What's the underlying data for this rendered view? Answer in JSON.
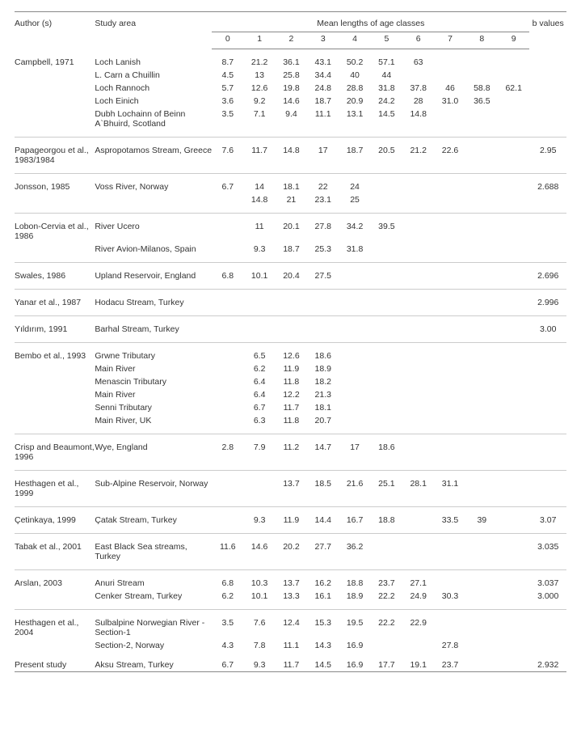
{
  "columns": {
    "author": "Author (s)",
    "area": "Study area",
    "span": "Mean lengths of age classes",
    "ages": [
      "0",
      "1",
      "2",
      "3",
      "4",
      "5",
      "6",
      "7",
      "8",
      "9"
    ],
    "b": "b values"
  },
  "groups": [
    {
      "author": "Campbell, 1971",
      "rows": [
        {
          "area": "Loch Lanish",
          "v": [
            "8.7",
            "21.2",
            "36.1",
            "43.1",
            "50.2",
            "57.1",
            "63",
            "",
            "",
            ""
          ],
          "b": ""
        },
        {
          "area": "L. Carn a Chuillin",
          "v": [
            "4.5",
            "13",
            "25.8",
            "34.4",
            "40",
            "44",
            "",
            "",
            "",
            ""
          ],
          "b": ""
        },
        {
          "area": "Loch Rannoch",
          "v": [
            "5.7",
            "12.6",
            "19.8",
            "24.8",
            "28.8",
            "31.8",
            "37.8",
            "46",
            "58.8",
            "62.1"
          ],
          "b": ""
        },
        {
          "area": "Loch Einich",
          "v": [
            "3.6",
            "9.2",
            "14.6",
            "18.7",
            "20.9",
            "24.2",
            "28",
            "31.0",
            "36.5",
            ""
          ],
          "b": ""
        },
        {
          "area": "Dubh Lochainn of Beinn A`Bhuird, Scotland",
          "v": [
            "3.5",
            "7.1",
            "9.4",
            "11.1",
            "13.1",
            "14.5",
            "14.8",
            "",
            "",
            ""
          ],
          "b": ""
        }
      ]
    },
    {
      "author": "Papageorgou et al., 1983/1984",
      "rows": [
        {
          "area": "Aspropotamos Stream, Greece",
          "v": [
            "7.6",
            "11.7",
            "14.8",
            "17",
            "18.7",
            "20.5",
            "21.2",
            "22.6",
            "",
            ""
          ],
          "b": "2.95"
        }
      ]
    },
    {
      "author": "Jonsson, 1985",
      "rows": [
        {
          "area": "Voss River, Norway",
          "v": [
            "6.7",
            "14",
            "18.1",
            "22",
            "24",
            "",
            "",
            "",
            "",
            ""
          ],
          "b": "2.688"
        },
        {
          "area": "",
          "v": [
            "",
            "14.8",
            "21",
            "23.1",
            "25",
            "",
            "",
            "",
            "",
            ""
          ],
          "b": ""
        }
      ]
    },
    {
      "author": "Lobon-Cervia et al., 1986",
      "rows": [
        {
          "area": "River Ucero",
          "v": [
            "",
            "11",
            "20.1",
            "27.8",
            "34.2",
            "39.5",
            "",
            "",
            "",
            ""
          ],
          "b": ""
        },
        {
          "area": "River Avion-Milanos, Spain",
          "v": [
            "",
            "9.3",
            "18.7",
            "25.3",
            "31.8",
            "",
            "",
            "",
            "",
            ""
          ],
          "b": ""
        }
      ]
    },
    {
      "author": "Swales, 1986",
      "rows": [
        {
          "area": "Upland Reservoir, England",
          "v": [
            "6.8",
            "10.1",
            "20.4",
            "27.5",
            "",
            "",
            "",
            "",
            "",
            ""
          ],
          "b": "2.696"
        }
      ]
    },
    {
      "author": "Yanar et al., 1987",
      "rows": [
        {
          "area": "Hodacu Stream, Turkey",
          "v": [
            "",
            "",
            "",
            "",
            "",
            "",
            "",
            "",
            "",
            ""
          ],
          "b": "2.996"
        }
      ]
    },
    {
      "author": "Yıldırım, 1991",
      "rows": [
        {
          "area": "Barhal Stream, Turkey",
          "v": [
            "",
            "",
            "",
            "",
            "",
            "",
            "",
            "",
            "",
            ""
          ],
          "b": "3.00"
        }
      ]
    },
    {
      "author": "Bembo et al., 1993",
      "rows": [
        {
          "area": "Grwne Tributary",
          "v": [
            "",
            "6.5",
            "12.6",
            "18.6",
            "",
            "",
            "",
            "",
            "",
            ""
          ],
          "b": ""
        },
        {
          "area": "Main River",
          "v": [
            "",
            "6.2",
            "11.9",
            "18.9",
            "",
            "",
            "",
            "",
            "",
            ""
          ],
          "b": ""
        },
        {
          "area": "Menascin Tributary",
          "v": [
            "",
            "6.4",
            "11.8",
            "18.2",
            "",
            "",
            "",
            "",
            "",
            ""
          ],
          "b": ""
        },
        {
          "area": "Main River",
          "v": [
            "",
            "6.4",
            "12.2",
            "21.3",
            "",
            "",
            "",
            "",
            "",
            ""
          ],
          "b": ""
        },
        {
          "area": "Senni Tributary",
          "v": [
            "",
            "6.7",
            "11.7",
            "18.1",
            "",
            "",
            "",
            "",
            "",
            ""
          ],
          "b": ""
        },
        {
          "area": "Main River, UK",
          "v": [
            "",
            "6.3",
            "11.8",
            "20.7",
            "",
            "",
            "",
            "",
            "",
            ""
          ],
          "b": ""
        }
      ]
    },
    {
      "author": "Crisp and Beaumont, 1996",
      "rows": [
        {
          "area": "Wye, England",
          "v": [
            "2.8",
            "7.9",
            "11.2",
            "14.7",
            "17",
            "18.6",
            "",
            "",
            "",
            ""
          ],
          "b": ""
        }
      ]
    },
    {
      "author": "Hesthagen et al., 1999",
      "rows": [
        {
          "area": "Sub-Alpine Reservoir, Norway",
          "v": [
            "",
            "",
            "13.7",
            "18.5",
            "21.6",
            "25.1",
            "28.1",
            "31.1",
            "",
            ""
          ],
          "b": ""
        }
      ]
    },
    {
      "author": "Çetinkaya, 1999",
      "rows": [
        {
          "area": "Çatak Stream, Turkey",
          "v": [
            "",
            "9.3",
            "11.9",
            "14.4",
            "16.7",
            "18.8",
            "",
            "33.5",
            "39",
            ""
          ],
          "b": "3.07"
        }
      ]
    },
    {
      "author": "Tabak et al., 2001",
      "rows": [
        {
          "area": "East Black Sea streams, Turkey",
          "v": [
            "11.6",
            "14.6",
            "20.2",
            "27.7",
            "36.2",
            "",
            "",
            "",
            "",
            ""
          ],
          "b": "3.035"
        }
      ]
    },
    {
      "author": "Arslan, 2003",
      "rows": [
        {
          "area": "Anuri Stream",
          "v": [
            "6.8",
            "10.3",
            "13.7",
            "16.2",
            "18.8",
            "23.7",
            "27.1",
            "",
            "",
            ""
          ],
          "b": "3.037"
        },
        {
          "area": "Cenker Stream, Turkey",
          "v": [
            "6.2",
            "10.1",
            "13.3",
            "16.1",
            "18.9",
            "22.2",
            "24.9",
            "30.3",
            "",
            ""
          ],
          "b": "3.000"
        }
      ]
    },
    {
      "author": "Hesthagen et al., 2004",
      "rows": [
        {
          "area": "Sulbalpine Norwegian River -Section-1",
          "v": [
            "3.5",
            "7.6",
            "12.4",
            "15.3",
            "19.5",
            "22.2",
            "22.9",
            "",
            "",
            ""
          ],
          "b": ""
        },
        {
          "area": "Section-2, Norway",
          "v": [
            "4.3",
            "7.8",
            "11.1",
            "14.3",
            "16.9",
            "",
            "",
            "27.8",
            "",
            ""
          ],
          "b": ""
        }
      ],
      "noBottomSep": true
    },
    {
      "author": "Present study",
      "rows": [
        {
          "area": "Aksu Stream, Turkey",
          "v": [
            "6.7",
            "9.3",
            "11.7",
            "14.5",
            "16.9",
            "17.7",
            "19.1",
            "23.7",
            "",
            ""
          ],
          "b": "2.932"
        }
      ],
      "isFinal": true
    }
  ]
}
